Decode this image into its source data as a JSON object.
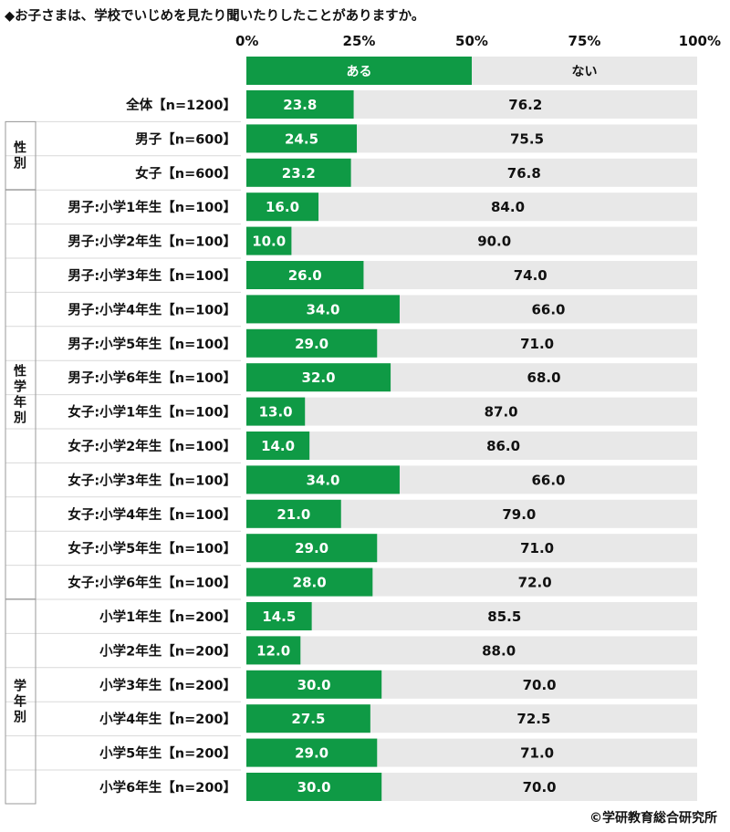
{
  "title": "◆お子さまは、学校でいじめを見たり聞いたりしたことがありますか。",
  "credit": "©学研教育総合研究所",
  "colors": {
    "yes": "#0f9a45",
    "no": "#e8e8e8",
    "bracket": "#9a9a9a"
  },
  "chart_data": {
    "type": "bar",
    "orientation": "horizontal",
    "stacked": true,
    "percent": true,
    "xlim": [
      0,
      100
    ],
    "ticks": [
      "0%",
      "25%",
      "50%",
      "75%",
      "100%"
    ],
    "legend": [
      "ある",
      "ない"
    ],
    "categories": [
      "全体【n=1200】",
      "男子【n=600】",
      "女子【n=600】",
      "男子:小学1年生【n=100】",
      "男子:小学2年生【n=100】",
      "男子:小学3年生【n=100】",
      "男子:小学4年生【n=100】",
      "男子:小学5年生【n=100】",
      "男子:小学6年生【n=100】",
      "女子:小学1年生【n=100】",
      "女子:小学2年生【n=100】",
      "女子:小学3年生【n=100】",
      "女子:小学4年生【n=100】",
      "女子:小学5年生【n=100】",
      "女子:小学6年生【n=100】",
      "小学1年生【n=200】",
      "小学2年生【n=200】",
      "小学3年生【n=200】",
      "小学4年生【n=200】",
      "小学5年生【n=200】",
      "小学6年生【n=200】"
    ],
    "series": [
      {
        "name": "ある",
        "values": [
          "23.8",
          "24.5",
          "23.2",
          "16.0",
          "10.0",
          "26.0",
          "34.0",
          "29.0",
          "32.0",
          "13.0",
          "14.0",
          "34.0",
          "21.0",
          "29.0",
          "28.0",
          "14.5",
          "12.0",
          "30.0",
          "27.5",
          "29.0",
          "30.0"
        ]
      },
      {
        "name": "ない",
        "values": [
          "76.2",
          "75.5",
          "76.8",
          "84.0",
          "90.0",
          "74.0",
          "66.0",
          "71.0",
          "68.0",
          "87.0",
          "86.0",
          "66.0",
          "79.0",
          "71.0",
          "72.0",
          "85.5",
          "88.0",
          "70.0",
          "72.5",
          "71.0",
          "70.0"
        ]
      }
    ],
    "groups": [
      {
        "label": "性別",
        "first": 1,
        "last": 2
      },
      {
        "label": "性学年別",
        "first": 3,
        "last": 14
      },
      {
        "label": "学年別",
        "first": 15,
        "last": 20
      }
    ]
  }
}
